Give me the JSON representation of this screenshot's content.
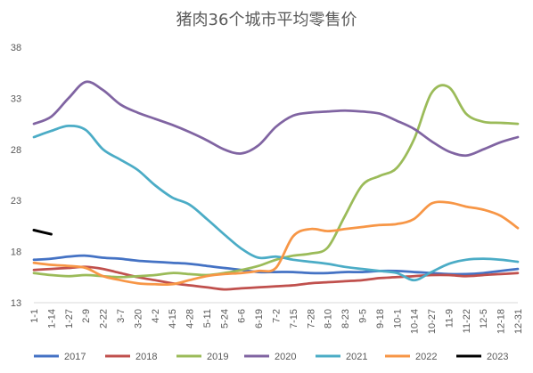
{
  "chart_data": {
    "type": "line",
    "title": "猪肉36个城市平均零售价",
    "xlabel": "",
    "ylabel": "",
    "ylim": [
      13,
      38
    ],
    "yticks": [
      "38",
      "33",
      "28",
      "23",
      "18",
      "13"
    ],
    "grid": false,
    "legend_position": "bottom",
    "categories": [
      "1-1",
      "1-14",
      "1-27",
      "2-9",
      "2-22",
      "3-7",
      "3-20",
      "4-2",
      "4-15",
      "4-28",
      "5-11",
      "5-24",
      "6-6",
      "6-19",
      "7-2",
      "7-15",
      "7-28",
      "8-10",
      "8-23",
      "9-5",
      "9-18",
      "10-1",
      "10-14",
      "10-27",
      "11-9",
      "11-22",
      "12-5",
      "12-18",
      "12-31"
    ],
    "series": [
      {
        "name": "2017",
        "color": "#4472C4",
        "values": [
          17.2,
          17.3,
          17.5,
          17.6,
          17.4,
          17.3,
          17.1,
          17.0,
          16.9,
          16.8,
          16.6,
          16.4,
          16.2,
          16.0,
          16.0,
          16.0,
          15.9,
          15.9,
          16.0,
          16.0,
          16.1,
          16.1,
          16.0,
          15.9,
          15.8,
          15.8,
          15.9,
          16.1,
          16.3
        ]
      },
      {
        "name": "2018",
        "color": "#C0504D",
        "values": [
          16.2,
          16.3,
          16.4,
          16.5,
          16.3,
          15.9,
          15.5,
          15.2,
          14.9,
          14.7,
          14.5,
          14.3,
          14.4,
          14.5,
          14.6,
          14.7,
          14.9,
          15.0,
          15.1,
          15.2,
          15.4,
          15.5,
          15.6,
          15.7,
          15.7,
          15.6,
          15.7,
          15.8,
          15.9
        ]
      },
      {
        "name": "2019",
        "color": "#9BBB59",
        "values": [
          15.9,
          15.7,
          15.6,
          15.7,
          15.6,
          15.5,
          15.6,
          15.7,
          15.9,
          15.8,
          15.7,
          15.9,
          16.2,
          16.6,
          17.2,
          17.6,
          17.8,
          18.4,
          21.5,
          24.5,
          25.4,
          26.2,
          29.0,
          33.5,
          34.1,
          31.5,
          30.7,
          30.6,
          30.5
        ]
      },
      {
        "name": "2020",
        "color": "#8064A2",
        "values": [
          30.5,
          31.2,
          33.0,
          34.6,
          33.8,
          32.4,
          31.6,
          31.0,
          30.4,
          29.7,
          28.9,
          28.0,
          27.6,
          28.4,
          30.2,
          31.3,
          31.6,
          31.7,
          31.8,
          31.7,
          31.5,
          30.8,
          30.0,
          28.8,
          27.8,
          27.4,
          28.0,
          28.7,
          29.2
        ]
      },
      {
        "name": "2021",
        "color": "#4BACC6",
        "values": [
          29.2,
          29.8,
          30.3,
          29.9,
          28.0,
          27.0,
          26.0,
          24.5,
          23.3,
          22.6,
          21.2,
          19.7,
          18.3,
          17.4,
          17.5,
          17.2,
          17.0,
          16.8,
          16.5,
          16.3,
          16.1,
          15.9,
          15.2,
          16.0,
          16.8,
          17.2,
          17.3,
          17.2,
          17.0
        ]
      },
      {
        "name": "2022",
        "color": "#F79646",
        "values": [
          16.9,
          16.7,
          16.6,
          16.4,
          15.6,
          15.2,
          14.9,
          14.8,
          14.8,
          15.2,
          15.6,
          15.8,
          15.9,
          16.1,
          16.4,
          19.5,
          20.2,
          20.0,
          20.2,
          20.4,
          20.6,
          20.7,
          21.2,
          22.7,
          22.8,
          22.4,
          22.1,
          21.5,
          20.3
        ]
      },
      {
        "name": "2023",
        "color": "#000000",
        "values": [
          20.1,
          19.7,
          null,
          null,
          null,
          null,
          null,
          null,
          null,
          null,
          null,
          null,
          null,
          null,
          null,
          null,
          null,
          null,
          null,
          null,
          null,
          null,
          null,
          null,
          null,
          null,
          null,
          null,
          null
        ]
      }
    ]
  }
}
